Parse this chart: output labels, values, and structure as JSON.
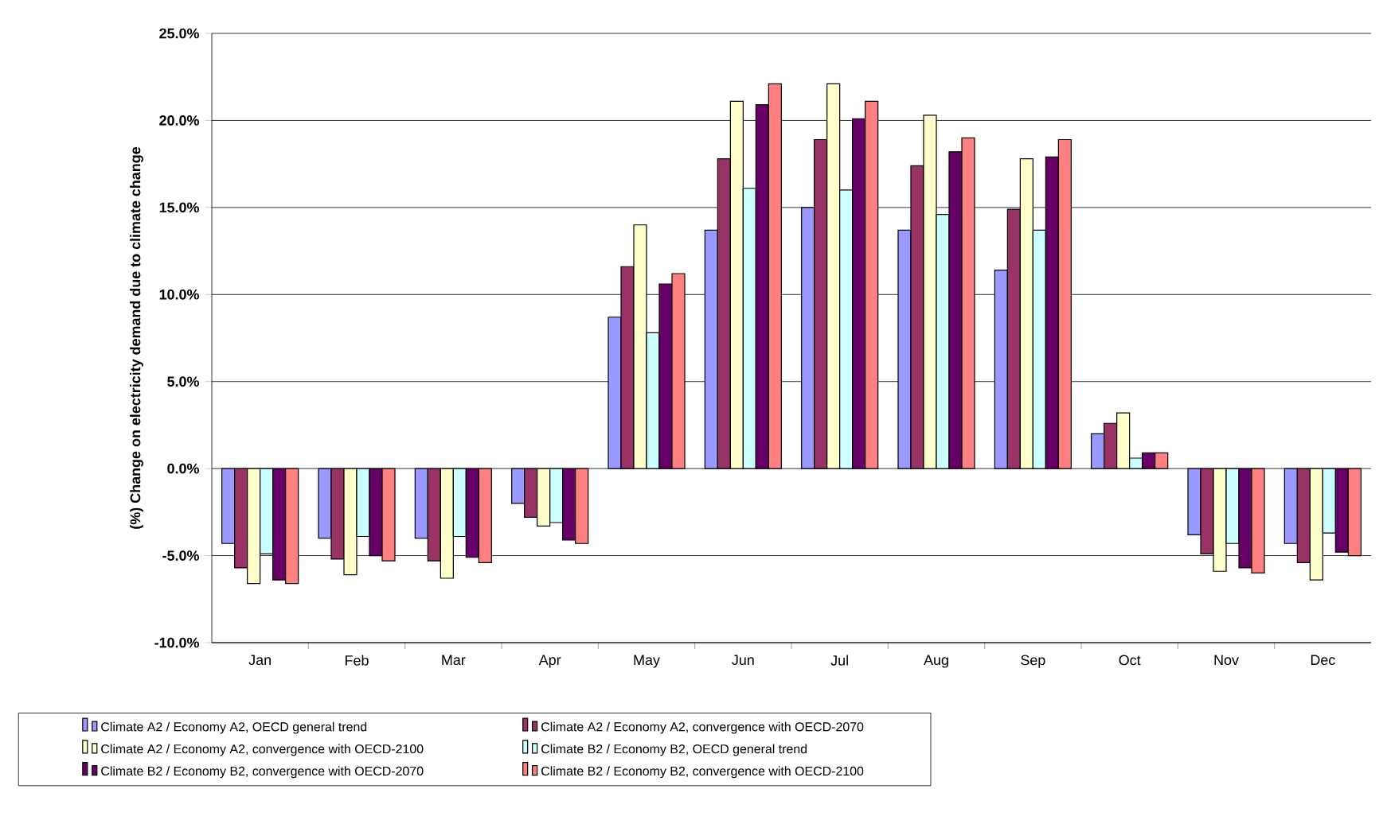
{
  "chart_data": {
    "type": "bar",
    "ylabel": "(%) Change on electricity demand due to climate change",
    "categories": [
      "Jan",
      "Feb",
      "Mar",
      "Apr",
      "May",
      "Jun",
      "Jul",
      "Aug",
      "Sep",
      "Oct",
      "Nov",
      "Dec"
    ],
    "series": [
      {
        "name": "Climate A2 / Economy A2, OECD general trend",
        "color": "#9999ff",
        "values": [
          -4.3,
          -4.0,
          -4.0,
          -2.0,
          8.7,
          13.7,
          15.0,
          13.7,
          11.4,
          2.0,
          -3.8,
          -4.3
        ]
      },
      {
        "name": "Climate A2 / Economy A2, convergence with OECD-2070",
        "color": "#993366",
        "values": [
          -5.7,
          -5.2,
          -5.3,
          -2.8,
          11.6,
          17.8,
          18.9,
          17.4,
          14.9,
          2.6,
          -4.9,
          -5.4
        ]
      },
      {
        "name": "Climate A2 / Economy A2, convergence with OECD-2100",
        "color": "#ffffcc",
        "values": [
          -6.6,
          -6.1,
          -6.3,
          -3.3,
          14.0,
          21.1,
          22.1,
          20.3,
          17.8,
          3.2,
          -5.9,
          -6.4
        ]
      },
      {
        "name": "Climate B2 / Economy B2, OECD general trend",
        "color": "#ccffff",
        "values": [
          -4.9,
          -3.9,
          -3.9,
          -3.1,
          7.8,
          16.1,
          16.0,
          14.6,
          13.7,
          0.6,
          -4.3,
          -3.7
        ]
      },
      {
        "name": "Climate B2 / Economy B2, convergence with OECD-2070",
        "color": "#660066",
        "values": [
          -6.4,
          -5.0,
          -5.1,
          -4.1,
          10.6,
          20.9,
          20.1,
          18.2,
          17.9,
          0.9,
          -5.7,
          -4.8
        ]
      },
      {
        "name": "Climate B2 / Economy B2, convergence with OECD-2100",
        "color": "#ff8080",
        "values": [
          -6.6,
          -5.3,
          -5.4,
          -4.3,
          11.2,
          22.1,
          21.1,
          19.0,
          18.9,
          0.9,
          -6.0,
          -5.0
        ]
      }
    ],
    "ylim": [
      -10,
      25
    ],
    "yticks": [
      {
        "value": -10,
        "label": "-10.0%"
      },
      {
        "value": -5,
        "label": "-5.0%"
      },
      {
        "value": 0,
        "label": "0.0%"
      },
      {
        "value": 5,
        "label": "5.0%"
      },
      {
        "value": 10,
        "label": "10.0%"
      },
      {
        "value": 15,
        "label": "15.0%"
      },
      {
        "value": 20,
        "label": "20.0%"
      },
      {
        "value": 25,
        "label": "25.0%"
      }
    ],
    "grid": "y",
    "legend": "bottom"
  }
}
